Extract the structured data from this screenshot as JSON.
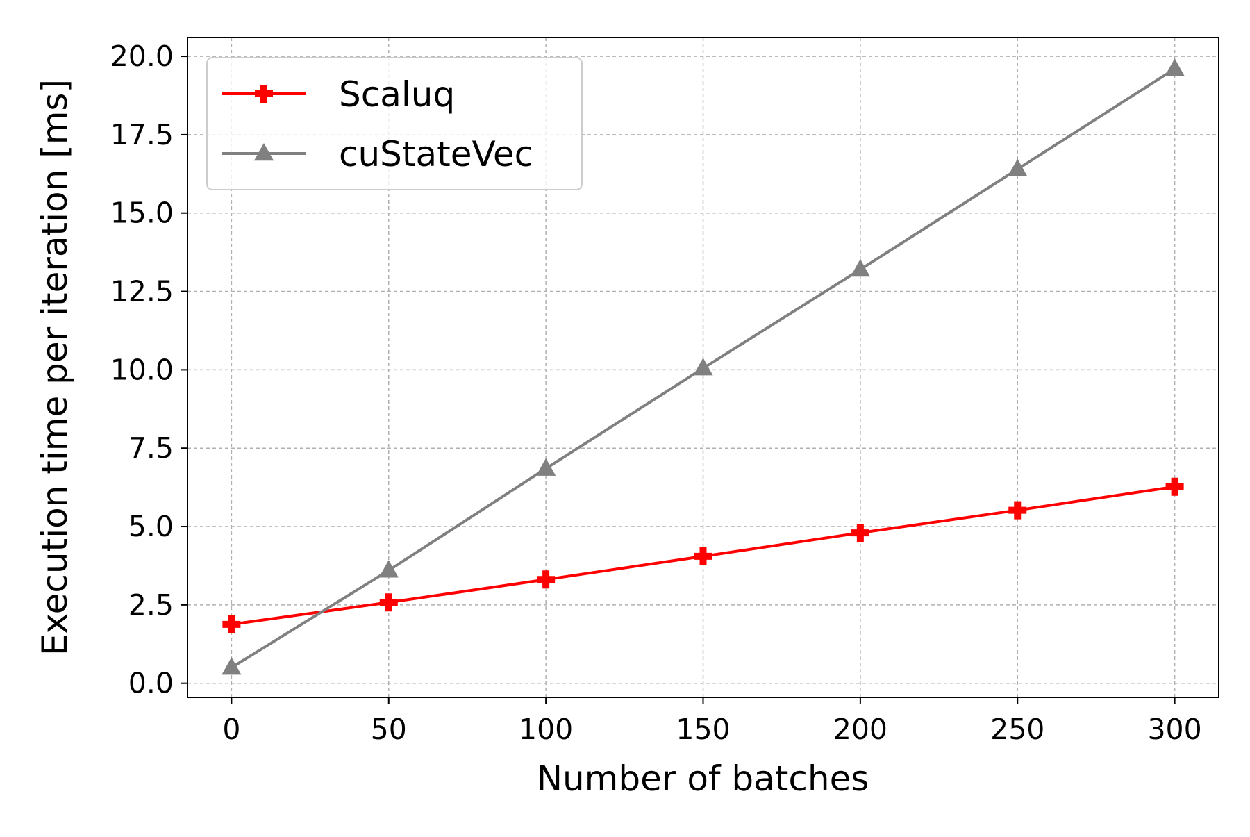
{
  "chart_data": {
    "type": "line",
    "title": "",
    "xlabel": "Number of batches",
    "ylabel": "Execution time per iteration [ms]",
    "x": [
      0,
      50,
      100,
      150,
      200,
      250,
      300
    ],
    "xlim": [
      -14,
      314
    ],
    "ylim": [
      -0.45,
      20.6
    ],
    "xticks": [
      0,
      50,
      100,
      150,
      200,
      250,
      300
    ],
    "xtick_labels": [
      "0",
      "50",
      "100",
      "150",
      "200",
      "250",
      "300"
    ],
    "yticks": [
      0,
      2.5,
      5,
      7.5,
      10,
      12.5,
      15,
      17.5,
      20
    ],
    "ytick_labels": [
      "0.0",
      "2.5",
      "5.0",
      "7.5",
      "10.0",
      "12.5",
      "15.0",
      "17.5",
      "20.0"
    ],
    "grid": true,
    "legend_position": "top-left",
    "series": [
      {
        "name": "Scaluq",
        "color": "#ff0000",
        "marker": "plus",
        "values": [
          1.88,
          2.58,
          3.31,
          4.05,
          4.8,
          5.52,
          6.27
        ]
      },
      {
        "name": "cuStateVec",
        "color": "#808080",
        "marker": "triangle",
        "values": [
          0.5,
          3.6,
          6.85,
          10.05,
          13.2,
          16.4,
          19.6
        ]
      }
    ]
  }
}
